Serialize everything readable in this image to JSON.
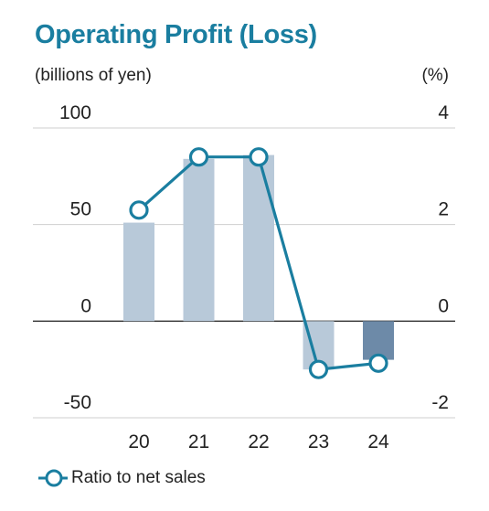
{
  "title": "Operating Profit (Loss)",
  "units": {
    "left": "(billions of yen)",
    "right": "(%)"
  },
  "chart_data": {
    "type": "bar",
    "categories": [
      "20",
      "21",
      "22",
      "23",
      "24"
    ],
    "series": [
      {
        "type": "bar",
        "values": [
          51,
          84,
          86,
          -25,
          -20
        ],
        "colors": [
          "#b8c9d9",
          "#b8c9d9",
          "#b8c9d9",
          "#b8c9d9",
          "#6d8aa8"
        ]
      },
      {
        "name": "Ratio to net sales",
        "type": "line",
        "axis": "right",
        "values": [
          2.3,
          3.4,
          3.4,
          -1.0,
          -0.87
        ],
        "color": "#1a7ea0"
      }
    ],
    "y_left": {
      "ticks": [
        "100",
        "50",
        "0",
        "-50"
      ],
      "lim": [
        -50,
        100
      ]
    },
    "y_right": {
      "ticks": [
        "4",
        "2",
        "0",
        "-2"
      ],
      "lim": [
        -2,
        4
      ]
    },
    "grid": true,
    "legend": "bottom-left"
  }
}
